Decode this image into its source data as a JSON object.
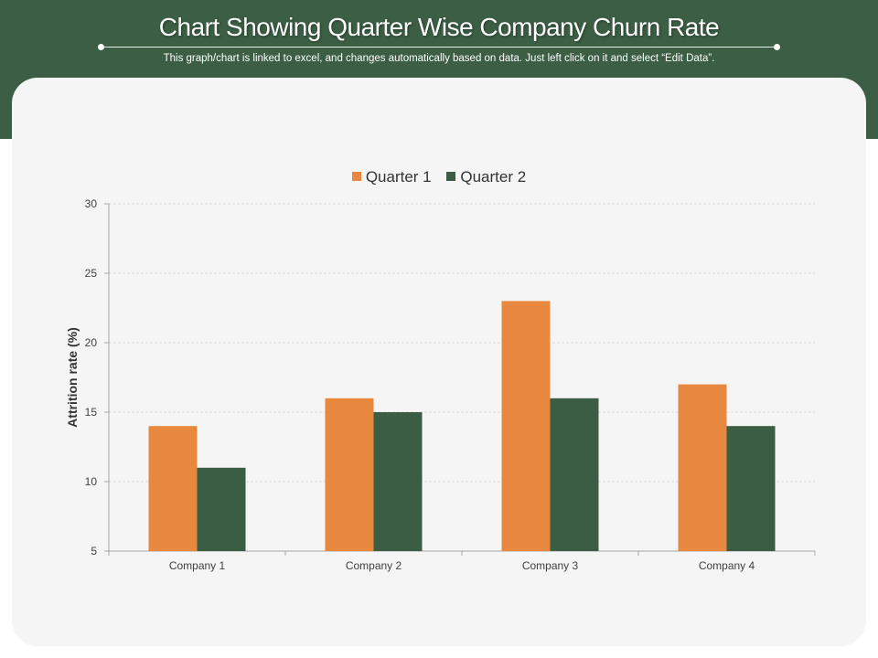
{
  "header": {
    "title": "Chart Showing Quarter Wise Company Churn Rate",
    "subtitle": "This graph/chart is linked to excel, and changes automatically based on data. Just left click on it and select “Edit Data”."
  },
  "colors": {
    "header_bg": "#3b5e44",
    "panel_bg": "#f5f5f5",
    "quarter1": "#e8883e",
    "quarter2": "#3a5d43"
  },
  "chart_data": {
    "type": "bar",
    "categories": [
      "Company 1",
      "Company 2",
      "Company 3",
      "Company 4"
    ],
    "series": [
      {
        "name": "Quarter 1",
        "values": [
          14,
          16,
          23,
          17
        ],
        "color": "#e8883e"
      },
      {
        "name": "Quarter 2",
        "values": [
          11,
          15,
          16,
          14
        ],
        "color": "#3a5d43"
      }
    ],
    "title": "",
    "xlabel": "",
    "ylabel": "Attrition rate (%)",
    "ylim": [
      5,
      30
    ],
    "yticks": [
      "5",
      "10",
      "15",
      "20",
      "25",
      "30"
    ],
    "grid": true,
    "legend_position": "top"
  }
}
